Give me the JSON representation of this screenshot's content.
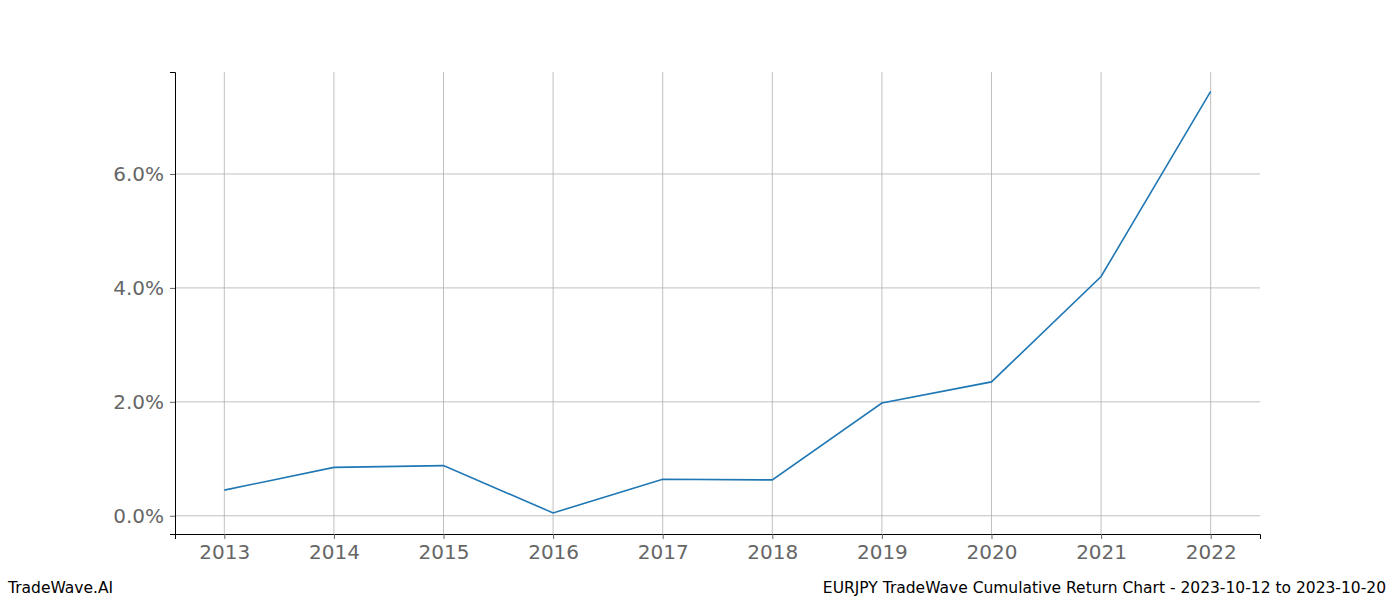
{
  "chart_data": {
    "type": "line",
    "x": [
      2013,
      2014,
      2015,
      2016,
      2017,
      2018,
      2019,
      2020,
      2021,
      2022
    ],
    "values": [
      0.45,
      0.85,
      0.88,
      0.05,
      0.64,
      0.63,
      1.98,
      2.35,
      4.2,
      7.45
    ],
    "color": "#1f77b4",
    "xlim": [
      2012.55,
      2022.45
    ],
    "xticks": [
      2013,
      2014,
      2015,
      2016,
      2017,
      2018,
      2019,
      2020,
      2021,
      2022
    ],
    "ylim": [
      -0.32,
      7.79
    ],
    "yticks": [
      {
        "value": 0,
        "label": "0.0%"
      },
      {
        "value": 2,
        "label": "2.0%"
      },
      {
        "value": 4,
        "label": "4.0%"
      },
      {
        "value": 6,
        "label": "6.0%"
      }
    ],
    "grid": true,
    "annotations": [
      "TradeWave.AI",
      "EURJPY TradeWave Cumulative Return Chart - 2023-10-12 to 2023-10-20"
    ]
  }
}
